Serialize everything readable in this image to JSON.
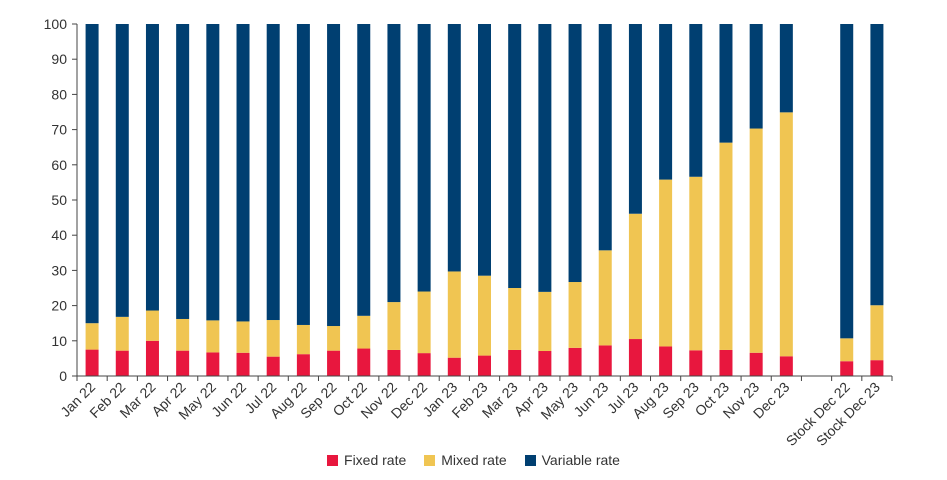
{
  "chart_data": {
    "type": "bar",
    "stacked": true,
    "categories": [
      "Jan 22",
      "Feb 22",
      "Mar 22",
      "Apr 22",
      "May 22",
      "Jun 22",
      "Jul 22",
      "Aug 22",
      "Sep 22",
      "Oct 22",
      "Nov 22",
      "Dec 22",
      "Jan 23",
      "Feb 23",
      "Mar 23",
      "Apr 23",
      "May 23",
      "Jun 23",
      "Jul 23",
      "Aug 23",
      "Sep 23",
      "Oct 23",
      "Nov 23",
      "Dec 23",
      "",
      "Stock Dec 22",
      "Stock Dec 23"
    ],
    "series": [
      {
        "name": "Fixed rate",
        "color": "#e8173e",
        "values": [
          7.5,
          7.2,
          10.0,
          7.2,
          6.7,
          6.6,
          5.5,
          6.2,
          7.2,
          7.8,
          7.4,
          6.5,
          5.2,
          5.8,
          7.4,
          7.1,
          8.0,
          8.7,
          10.5,
          8.4,
          7.3,
          7.4,
          6.6,
          5.6,
          null,
          4.2,
          4.5
        ]
      },
      {
        "name": "Mixed rate",
        "color": "#f0c552",
        "values": [
          7.5,
          9.6,
          8.6,
          9.0,
          9.1,
          8.9,
          10.4,
          8.3,
          7.0,
          9.3,
          13.6,
          17.5,
          24.5,
          22.7,
          17.6,
          16.8,
          18.7,
          27.0,
          35.6,
          47.4,
          49.3,
          58.9,
          63.7,
          69.3,
          null,
          6.5,
          15.6
        ]
      },
      {
        "name": "Variable rate",
        "color": "#003f71",
        "values": [
          85.0,
          83.2,
          81.4,
          83.8,
          84.2,
          84.5,
          84.1,
          85.5,
          85.8,
          82.9,
          79.0,
          76.0,
          70.3,
          71.5,
          75.0,
          76.1,
          73.3,
          64.3,
          53.9,
          44.2,
          43.4,
          33.7,
          29.7,
          25.1,
          null,
          89.3,
          79.9
        ]
      }
    ],
    "ylim": [
      0,
      100
    ],
    "yticks": [
      0,
      10,
      20,
      30,
      40,
      50,
      60,
      70,
      80,
      90,
      100
    ],
    "xlabel": "",
    "ylabel": "",
    "legend_position": "bottom-center",
    "grid": false
  }
}
